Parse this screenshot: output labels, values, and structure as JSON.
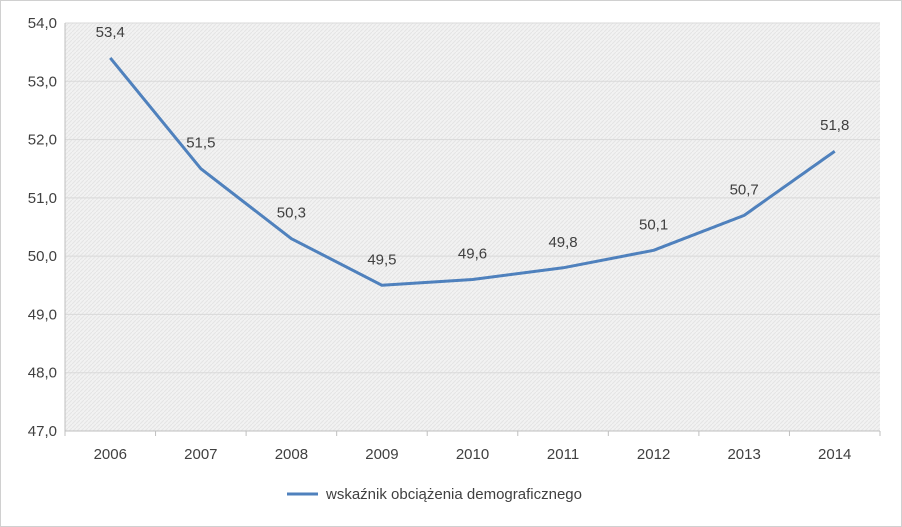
{
  "chart_data": {
    "type": "line",
    "title": "",
    "xlabel": "",
    "ylabel": "",
    "categories": [
      "2006",
      "2007",
      "2008",
      "2009",
      "2010",
      "2011",
      "2012",
      "2013",
      "2014"
    ],
    "series": [
      {
        "name": "wskaźnik obciążenia demograficznego",
        "values": [
          53.4,
          51.5,
          50.3,
          49.5,
          49.6,
          49.8,
          50.1,
          50.7,
          51.8
        ],
        "labels": [
          "53,4",
          "51,5",
          "50,3",
          "49,5",
          "49,6",
          "49,8",
          "50,1",
          "50,7",
          "51,8"
        ],
        "color": "#4f81bd"
      }
    ],
    "ylim": [
      47,
      54
    ],
    "y_ticks": [
      "47,0",
      "48,0",
      "49,0",
      "50,0",
      "51,0",
      "52,0",
      "53,0",
      "54,0"
    ],
    "grid": true,
    "legend_position": "bottom",
    "plot_background": "hatched light gray"
  }
}
